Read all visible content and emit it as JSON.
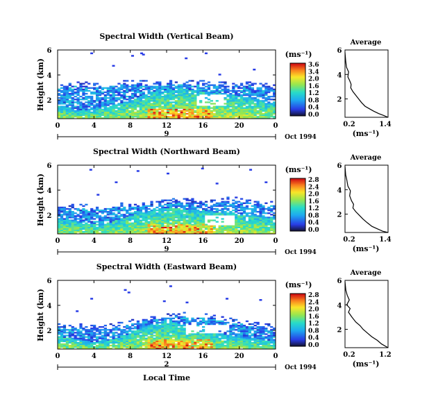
{
  "xlabel_common": "Local Time",
  "date_label": "Oct 1994",
  "colorbar_unit": "(ms⁻¹)",
  "profile_title": "Average",
  "profile_xlabel": "(ms⁻¹)",
  "ylabel": "Height (km)",
  "chart_data": [
    {
      "type": "heatmap",
      "title": "Spectral Width (Vertical Beam)",
      "ylabel": "Height (km)",
      "x_ticks": [
        "0",
        "4",
        "8",
        "12",
        "16",
        "20",
        "0"
      ],
      "x_range": [
        0,
        24
      ],
      "y_ticks": [
        "6",
        "4",
        "2"
      ],
      "y_range": [
        0.5,
        6
      ],
      "date_number": "9",
      "colorbar": {
        "ticks": [
          "3.6",
          "3.4",
          "2.0",
          "1.6",
          "1.2",
          "0.8",
          "0.4",
          "0.0"
        ],
        "range": [
          0,
          3.6
        ]
      },
      "profile": {
        "x_ticks": [
          "0.2",
          "1.4"
        ],
        "x_range": [
          0.2,
          1.4
        ],
        "y_ticks": [
          "6",
          "4",
          "2"
        ],
        "y_range": [
          0.5,
          6
        ],
        "x": [
          0.2,
          0.22,
          0.24,
          0.3,
          0.28,
          0.33,
          0.37,
          0.36,
          0.42,
          0.5,
          0.58,
          0.66,
          0.76,
          0.88,
          1.0,
          1.14,
          1.28,
          1.4
        ],
        "y": [
          5.8,
          5.1,
          4.6,
          4.2,
          3.8,
          3.5,
          3.2,
          2.9,
          2.6,
          2.3,
          2.0,
          1.7,
          1.4,
          1.2,
          1.0,
          0.8,
          0.65,
          0.5
        ]
      },
      "extent": {
        "top": [
          3.0,
          3.0,
          3.1,
          3.1,
          3.0,
          3.0,
          3.1,
          3.2,
          3.2,
          3.3,
          3.2,
          3.1,
          3.2,
          3.3,
          3.3,
          3.3,
          3.2,
          3.1,
          3.1,
          3.1,
          3.2,
          3.1,
          3.0,
          3.0,
          2.9
        ],
        "core": [
          1.6,
          1.4,
          1.2,
          1.2,
          1.3,
          1.5,
          1.6,
          1.8,
          2.0,
          2.2,
          2.5,
          2.7,
          2.8,
          2.8,
          2.9,
          2.8,
          2.7,
          2.6,
          2.5,
          2.3,
          2.3,
          2.2,
          2.0,
          1.8,
          1.7
        ],
        "gap": {
          "x": [
            15.4,
            18.6
          ],
          "y": [
            1.5,
            2.4
          ]
        }
      },
      "sparse_cells": [
        [
          9.1,
          5.8
        ],
        [
          9.3,
          5.7
        ],
        [
          8.1,
          5.6
        ],
        [
          3.6,
          5.8
        ],
        [
          14.0,
          5.4
        ],
        [
          16.2,
          5.8
        ],
        [
          21.5,
          4.5
        ],
        [
          6.0,
          4.8
        ],
        [
          17.7,
          4.1
        ]
      ],
      "cell_cols": 80,
      "cell_rows": 48
    },
    {
      "type": "heatmap",
      "title": "Spectral Width (Northward Beam)",
      "ylabel": "Height (km)",
      "x_ticks": [
        "0",
        "4",
        "8",
        "12",
        "16",
        "20",
        "0"
      ],
      "x_range": [
        0,
        24
      ],
      "y_ticks": [
        "6",
        "4",
        "2"
      ],
      "y_range": [
        0.5,
        6
      ],
      "date_number": "9",
      "colorbar": {
        "ticks": [
          "2.8",
          "2.4",
          "2.0",
          "1.6",
          "1.2",
          "0.8",
          "0.4",
          "0.0"
        ],
        "range": [
          0,
          2.8
        ]
      },
      "profile": {
        "x_ticks": [
          "0.2",
          "1.4"
        ],
        "x_range": [
          0.2,
          1.4
        ],
        "y_ticks": [
          "6",
          "4",
          "2"
        ],
        "y_range": [
          0.5,
          6
        ],
        "x": [
          0.2,
          0.22,
          0.25,
          0.28,
          0.35,
          0.33,
          0.38,
          0.44,
          0.42,
          0.5,
          0.6,
          0.7,
          0.82,
          0.95,
          1.1,
          1.25,
          1.4
        ],
        "y": [
          5.9,
          5.2,
          4.8,
          4.3,
          3.9,
          3.5,
          3.1,
          2.8,
          2.5,
          2.2,
          1.9,
          1.6,
          1.3,
          1.0,
          0.8,
          0.6,
          0.5
        ]
      },
      "extent": {
        "top": [
          2.6,
          2.6,
          2.6,
          2.5,
          2.5,
          2.5,
          2.6,
          2.7,
          2.7,
          2.7,
          2.8,
          2.8,
          2.9,
          3.0,
          3.0,
          3.0,
          2.9,
          2.9,
          3.0,
          3.1,
          3.1,
          3.0,
          2.9,
          2.8,
          2.8
        ],
        "core": [
          1.7,
          1.6,
          1.5,
          1.4,
          1.3,
          1.3,
          1.5,
          1.7,
          2.0,
          2.1,
          2.3,
          2.5,
          2.6,
          2.6,
          2.5,
          2.5,
          2.4,
          2.3,
          2.2,
          2.2,
          2.1,
          2.0,
          1.9,
          1.8,
          1.7
        ],
        "gap": {
          "x": [
            16.2,
            19.4
          ],
          "y": [
            1.2,
            2.0
          ]
        }
      },
      "sparse_cells": [
        [
          3.5,
          5.7
        ],
        [
          8.7,
          5.6
        ],
        [
          15.8,
          5.8
        ],
        [
          21.1,
          5.7
        ],
        [
          6.3,
          4.7
        ],
        [
          12.0,
          5.4
        ],
        [
          17.4,
          4.6
        ],
        [
          22.8,
          4.7
        ],
        [
          4.3,
          3.7
        ]
      ],
      "cell_cols": 80,
      "cell_rows": 48
    },
    {
      "type": "heatmap",
      "title": "Spectral Width (Eastward Beam)",
      "ylabel": "Height (km)",
      "x_ticks": [
        "0",
        "4",
        "8",
        "12",
        "16",
        "20",
        "0"
      ],
      "x_range": [
        0,
        24
      ],
      "y_ticks": [
        "6",
        "4",
        "2"
      ],
      "y_range": [
        0.5,
        6
      ],
      "date_number": "2",
      "colorbar": {
        "ticks": [
          "2.8",
          "2.4",
          "2.0",
          "1.6",
          "1.2",
          "0.8",
          "0.4",
          "0.0"
        ],
        "range": [
          0,
          2.8
        ]
      },
      "profile": {
        "x_ticks": [
          "0.2",
          "1.2"
        ],
        "x_range": [
          0.2,
          1.2
        ],
        "y_ticks": [
          "6",
          "4",
          "2"
        ],
        "y_range": [
          0.5,
          6
        ],
        "x": [
          0.2,
          0.22,
          0.25,
          0.3,
          0.24,
          0.32,
          0.28,
          0.36,
          0.45,
          0.55,
          0.62,
          0.72,
          0.82,
          0.95,
          1.05,
          1.2
        ],
        "y": [
          5.9,
          5.2,
          4.8,
          4.4,
          4.0,
          3.7,
          3.4,
          3.0,
          2.6,
          2.3,
          2.0,
          1.7,
          1.4,
          1.1,
          0.8,
          0.5
        ]
      },
      "extent": {
        "top": [
          2.3,
          2.2,
          2.2,
          2.2,
          2.1,
          2.1,
          2.2,
          2.3,
          2.5,
          2.7,
          2.8,
          2.9,
          3.0,
          3.1,
          3.1,
          3.0,
          3.0,
          2.9,
          2.8,
          2.7,
          2.6,
          2.4,
          2.3,
          2.2,
          2.1
        ],
        "core": [
          1.6,
          1.4,
          1.3,
          1.2,
          1.1,
          1.1,
          1.3,
          1.5,
          1.8,
          2.1,
          2.4,
          2.6,
          2.7,
          2.6,
          2.4,
          2.2,
          2.0,
          1.8,
          1.7,
          1.6,
          1.5,
          1.4,
          1.3,
          1.2,
          1.2
        ],
        "gap": {
          "x": [
            14.2,
            19.0
          ],
          "y": [
            1.8,
            2.5
          ]
        }
      },
      "sparse_cells": [
        [
          7.3,
          5.3
        ],
        [
          3.6,
          4.6
        ],
        [
          11.6,
          4.4
        ],
        [
          14.1,
          4.3
        ],
        [
          18.5,
          4.6
        ],
        [
          22.2,
          4.5
        ],
        [
          7.7,
          5.1
        ],
        [
          12.3,
          5.6
        ],
        [
          2.0,
          3.6
        ]
      ],
      "cell_cols": 80,
      "cell_rows": 48
    }
  ]
}
